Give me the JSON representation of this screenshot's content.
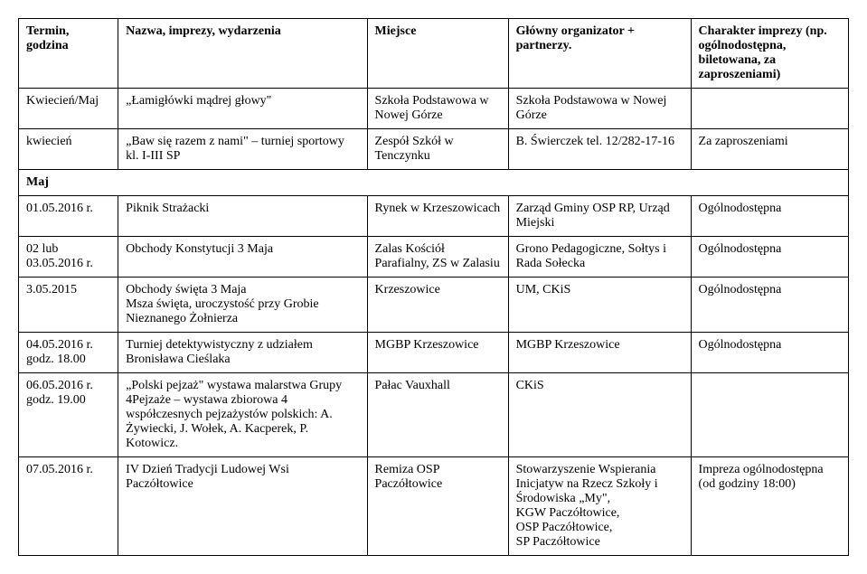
{
  "headers": {
    "c1": "Termin, godzina",
    "c2": "Nazwa, imprezy, wydarzenia",
    "c3": "Miejsce",
    "c4": "Główny organizator + partnerzy.",
    "c5": "Charakter imprezy (np. ogólnodostępna, biletowana, za zaproszeniami)"
  },
  "rows": [
    {
      "c1": "Kwiecień/Maj",
      "c2": "„Łamigłówki mądrej głowy\"",
      "c3": "Szkoła Podstawowa w Nowej Górze",
      "c4": "Szkoła Podstawowa w Nowej Górze",
      "c5": ""
    },
    {
      "c1": "kwiecień",
      "c2": "„Baw się razem z nami\" – turniej sportowy kl. I-III SP",
      "c3": "Zespół Szkół w Tenczynku",
      "c4": "B. Świerczek tel. 12/282-17-16",
      "c5": "Za zaproszeniami"
    }
  ],
  "section": {
    "label": "Maj"
  },
  "rows2": [
    {
      "c1": "01.05.2016 r.",
      "c2": "Piknik Strażacki",
      "c3": "Rynek w Krzeszowicach",
      "c4": "Zarząd Gminy OSP RP, Urząd Miejski",
      "c5": "Ogólnodostępna"
    },
    {
      "c1": "02 lub 03.05.2016 r.",
      "c2": "Obchody Konstytucji 3 Maja",
      "c3": "Zalas Kościół Parafialny, ZS w Zalasiu",
      "c4": "Grono Pedagogiczne, Sołtys i Rada Sołecka",
      "c5": "Ogólnodostępna"
    },
    {
      "c1": "3.05.2015",
      "c2": "Obchody święta 3 Maja\nMsza święta, uroczystość przy Grobie Nieznanego Żołnierza",
      "c3": "Krzeszowice",
      "c4": "UM, CKiS",
      "c5": "Ogólnodostępna"
    },
    {
      "c1": "04.05.2016 r. godz. 18.00",
      "c2": "Turniej detektywistyczny z udziałem Bronisława Cieślaka",
      "c3": "MGBP Krzeszowice",
      "c4": "MGBP Krzeszowice",
      "c5": "Ogólnodostępna"
    },
    {
      "c1": "06.05.2016 r. godz. 19.00",
      "c2": "„Polski pejzaż\" wystawa malarstwa Grupy 4Pejzaże – wystawa zbiorowa 4 współczesnych pejzażystów polskich: A. Żywiecki, J. Wołek, A. Kacperek, P. Kotowicz.",
      "c3": "Pałac Vauxhall",
      "c4": "CKiS",
      "c5": ""
    },
    {
      "c1": "07.05.2016 r.",
      "c2": "IV Dzień Tradycji Ludowej Wsi Paczółtowice",
      "c3": "Remiza OSP Paczółtowice",
      "c4": "Stowarzyszenie Wspierania Inicjatyw na Rzecz Szkoły i Środowiska „My\",\nKGW Paczółtowice,\nOSP Paczółtowice,\nSP Paczółtowice",
      "c5": "Impreza ogólnodostępna (od godziny 18:00)"
    }
  ],
  "colors": {
    "text": "#000000",
    "background": "#ffffff",
    "border": "#000000"
  },
  "typography": {
    "font_family": "Times New Roman",
    "font_size_pt": 11,
    "header_weight": "bold"
  }
}
